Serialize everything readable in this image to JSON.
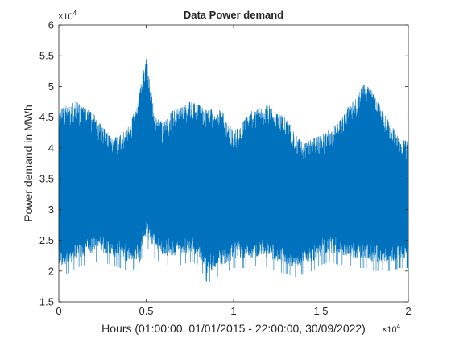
{
  "chart_data": {
    "type": "line",
    "title": "Data Power demand",
    "xlabel": "Hours (01:00:00, 01/01/2015 -  22:00:00, 30/09/2022)",
    "ylabel": "Power demand in MWh",
    "x_multiplier_label": "×10",
    "x_multiplier_exp": "4",
    "y_multiplier_label": "×10",
    "y_multiplier_exp": "4",
    "xlim": [
      0,
      20000
    ],
    "ylim": [
      15000,
      60000
    ],
    "x_tick_values": [
      0,
      5000,
      10000,
      15000,
      20000
    ],
    "x_tick_labels": [
      "0",
      "0.5",
      "1",
      "1.5",
      "2"
    ],
    "y_tick_values": [
      15000,
      20000,
      25000,
      30000,
      35000,
      40000,
      45000,
      50000,
      55000,
      60000
    ],
    "y_tick_labels": [
      "1.5",
      "2",
      "2.5",
      "3",
      "3.5",
      "4",
      "4.5",
      "5",
      "5.5",
      "6"
    ],
    "grid": false,
    "line_color": "#0072BD",
    "series": [
      {
        "x_hours": [
          0,
          500,
          1000,
          1500,
          2000,
          2500,
          3000,
          3500,
          4000,
          4500,
          5000,
          5500,
          6000,
          6500,
          7000,
          7500,
          8000,
          8500,
          9000,
          9500,
          10000,
          10500,
          11000,
          11500,
          12000,
          12500,
          13000,
          13500,
          14000,
          14500,
          15000,
          15500,
          16000,
          16500,
          17000,
          17500,
          18000,
          18500,
          19000,
          19500,
          20000
        ],
        "upper_envelope_mwh": [
          46000,
          47000,
          47500,
          46500,
          45500,
          43500,
          41500,
          42000,
          43500,
          47000,
          55000,
          45000,
          44000,
          46000,
          46500,
          47500,
          47000,
          46000,
          46500,
          45500,
          42500,
          44000,
          46000,
          46500,
          47000,
          45500,
          45000,
          42500,
          40500,
          41500,
          42000,
          43000,
          44000,
          46500,
          48000,
          50500,
          49000,
          46000,
          44000,
          41500,
          41000
        ],
        "lower_envelope_mwh": [
          19000,
          19500,
          20500,
          21000,
          21500,
          21500,
          21000,
          20500,
          20000,
          20500,
          24000,
          22000,
          21000,
          21000,
          21000,
          21500,
          21000,
          18000,
          19000,
          19500,
          20500,
          20500,
          20500,
          21000,
          20500,
          20000,
          19500,
          19000,
          19500,
          20000,
          21000,
          21500,
          21000,
          21000,
          20500,
          20500,
          20000,
          20000,
          20000,
          20500,
          20500
        ]
      }
    ]
  }
}
